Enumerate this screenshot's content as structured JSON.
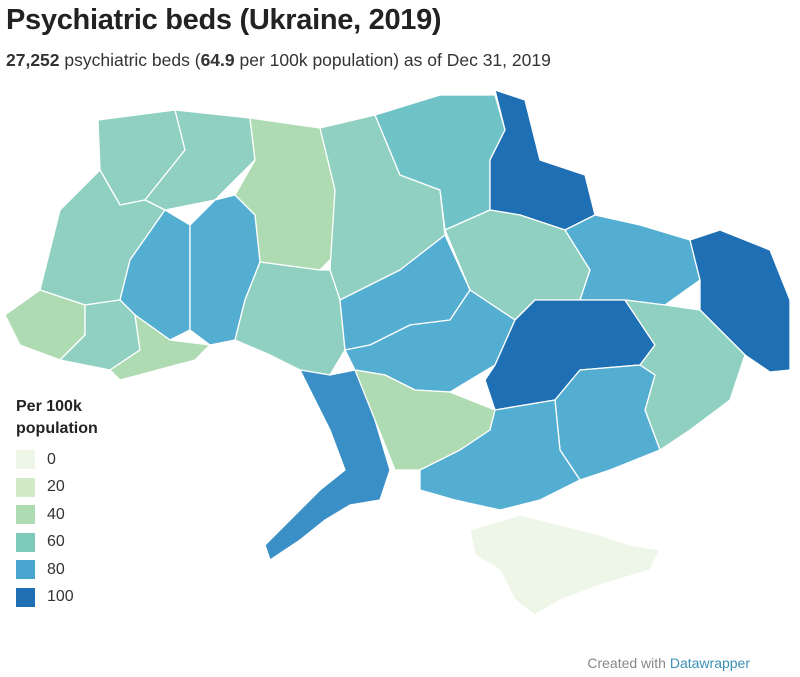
{
  "title": "Psychiatric beds (Ukraine, 2019)",
  "subtitle": {
    "beds_total": "27,252",
    "text_1": " psychiatric beds (",
    "rate": "64.9",
    "text_2": " per 100k population) as of Dec 31, 2019"
  },
  "legend": {
    "title_line1": "Per 100k",
    "title_line2": "population",
    "items": [
      {
        "label": "0",
        "color": "#eef6e8"
      },
      {
        "label": "20",
        "color": "#d2ebc6"
      },
      {
        "label": "40",
        "color": "#aedbb2"
      },
      {
        "label": "60",
        "color": "#7ccbbd"
      },
      {
        "label": "80",
        "color": "#4ba6cf"
      },
      {
        "label": "100",
        "color": "#1f6fb4"
      }
    ]
  },
  "credit": {
    "prefix": "Created with ",
    "brand": "Datawrapper"
  },
  "colors": {
    "c0": "#eef6e8",
    "c20": "#d2ebc6",
    "c40": "#aedbb2",
    "c60": "#8fd0c0",
    "c70": "#6fc3c7",
    "c80": "#54aed2",
    "c90": "#3a8fc7",
    "c100": "#1f6fb4"
  }
}
